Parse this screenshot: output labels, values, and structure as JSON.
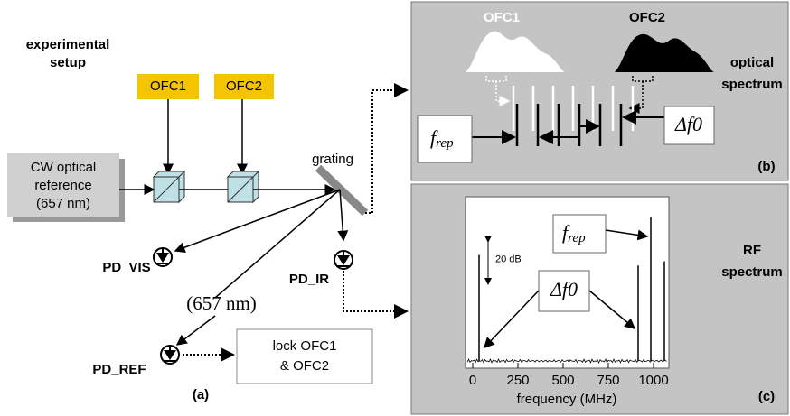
{
  "panel_a": {
    "title_lines": [
      "experimental",
      "setup"
    ],
    "sources": [
      "OFC1",
      "OFC2"
    ],
    "reference_lines": [
      "CW optical",
      "reference",
      "(657 nm)"
    ],
    "grating": "grating",
    "detectors": [
      "PD_VIS",
      "PD_IR",
      "PD_REF"
    ],
    "wavelength": "(657 nm)",
    "lock_lines": [
      "lock OFC1",
      "& OFC2"
    ],
    "label": "(a)"
  },
  "panel_b": {
    "combs": [
      "OFC1",
      "OFC2"
    ],
    "title_lines": [
      "optical",
      "spectrum"
    ],
    "frep": {
      "main": "f",
      "sub": "rep"
    },
    "delta": "Δf0",
    "label": "(b)"
  },
  "panel_c": {
    "title_lines": [
      "RF",
      "spectrum"
    ],
    "xlabel": "frequency (MHz)",
    "xlim": [
      -40,
      1085
    ],
    "xticks": [
      0,
      250,
      500,
      750,
      1000
    ],
    "peaks_mhz": [
      35,
      915,
      985,
      1060
    ],
    "peak_levels_db": [
      50,
      45,
      68,
      47
    ],
    "scale_bar": {
      "value": 20,
      "label": "20 dB"
    },
    "frep": {
      "main": "f",
      "sub": "rep"
    },
    "delta": "Δf0",
    "label": "(c)"
  }
}
